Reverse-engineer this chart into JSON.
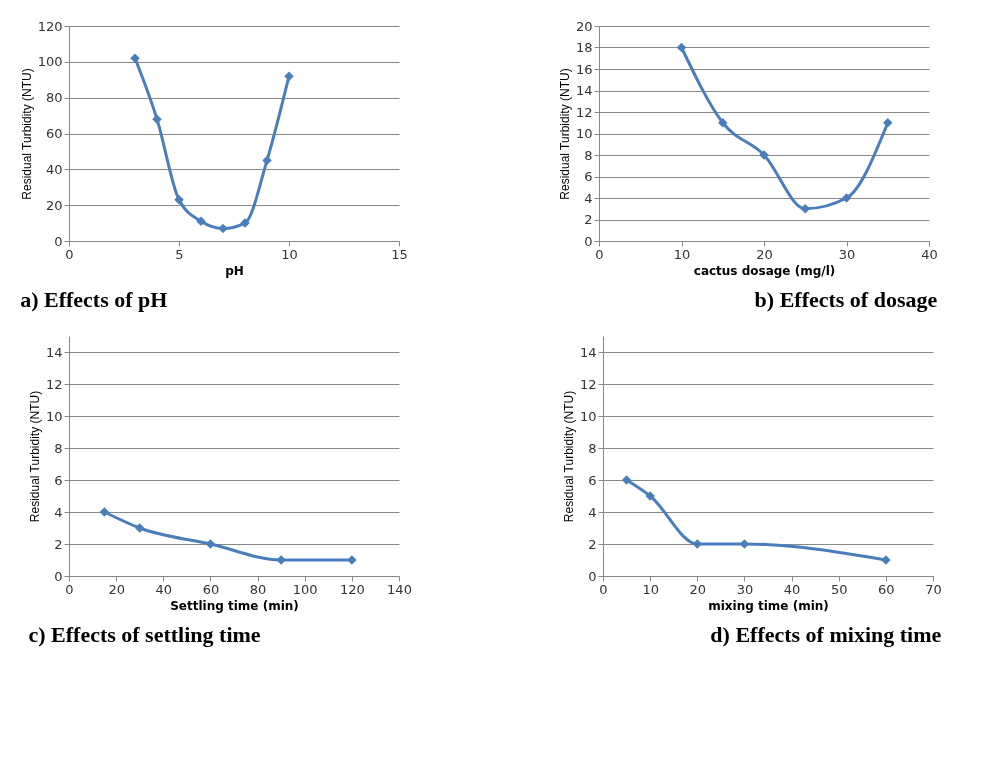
{
  "chart_data": [
    {
      "type": "line",
      "title": "a)      Effects of pH",
      "xlabel": "pH",
      "ylabel": "Residual Turbidity (NTU)",
      "x": [
        3,
        4,
        5,
        6,
        7,
        8,
        9,
        10
      ],
      "series": [
        {
          "color": "#4a7ebb",
          "values": [
            102,
            68,
            23,
            11,
            7,
            10,
            45,
            92
          ]
        }
      ],
      "xlim": [
        0,
        15
      ],
      "xticks": [
        0,
        5,
        10,
        15
      ],
      "ylim": [
        0,
        120
      ],
      "yticks": [
        0,
        20,
        40,
        60,
        80,
        100,
        120
      ],
      "grid": "y",
      "marker": "diamond",
      "line_style": "solid"
    },
    {
      "type": "line",
      "title": "b) Effects of dosage",
      "xlabel": "cactus dosage (mg/l)",
      "ylabel": "Residual Turbidity (NTU)",
      "x": [
        10,
        15,
        20,
        25,
        30,
        35
      ],
      "series": [
        {
          "color": "#4a7ebb",
          "values": [
            18,
            11,
            8,
            3,
            4,
            11
          ]
        }
      ],
      "xlim": [
        0,
        40
      ],
      "xticks": [
        0,
        10,
        20,
        30,
        40
      ],
      "ylim": [
        0,
        20
      ],
      "yticks": [
        0,
        2,
        4,
        6,
        8,
        10,
        12,
        14,
        16,
        18,
        20
      ],
      "grid": "y",
      "marker": "diamond",
      "line_style": "solid"
    },
    {
      "type": "line",
      "title": "c) Effects of settling time",
      "xlabel": "Settling time (min)",
      "ylabel": "Residual Turbidity (NTU)",
      "x": [
        15,
        30,
        60,
        90,
        120
      ],
      "series": [
        {
          "color": "#4a7ebb",
          "values": [
            4,
            3,
            2,
            1,
            1
          ]
        }
      ],
      "xlim": [
        0,
        140
      ],
      "xticks": [
        0,
        20,
        40,
        60,
        80,
        100,
        120,
        140
      ],
      "ylim": [
        0,
        15
      ],
      "yticks": [
        0,
        2,
        4,
        6,
        8,
        10,
        12,
        14
      ],
      "grid": "y",
      "marker": "diamond",
      "line_style": "solid"
    },
    {
      "type": "line",
      "title": "d)   Effects of mixing time",
      "xlabel": "mixing time (min)",
      "ylabel": "Residual Turbidity (NTU)",
      "x": [
        5,
        10,
        20,
        30,
        60
      ],
      "series": [
        {
          "color": "#4a7ebb",
          "values": [
            6,
            5,
            2,
            2,
            1
          ]
        }
      ],
      "xlim": [
        0,
        70
      ],
      "xticks": [
        0,
        10,
        20,
        30,
        40,
        50,
        60,
        70
      ],
      "ylim": [
        0,
        15
      ],
      "yticks": [
        0,
        2,
        4,
        6,
        8,
        10,
        12,
        14
      ],
      "grid": "y",
      "marker": "diamond",
      "line_style": "solid"
    }
  ]
}
